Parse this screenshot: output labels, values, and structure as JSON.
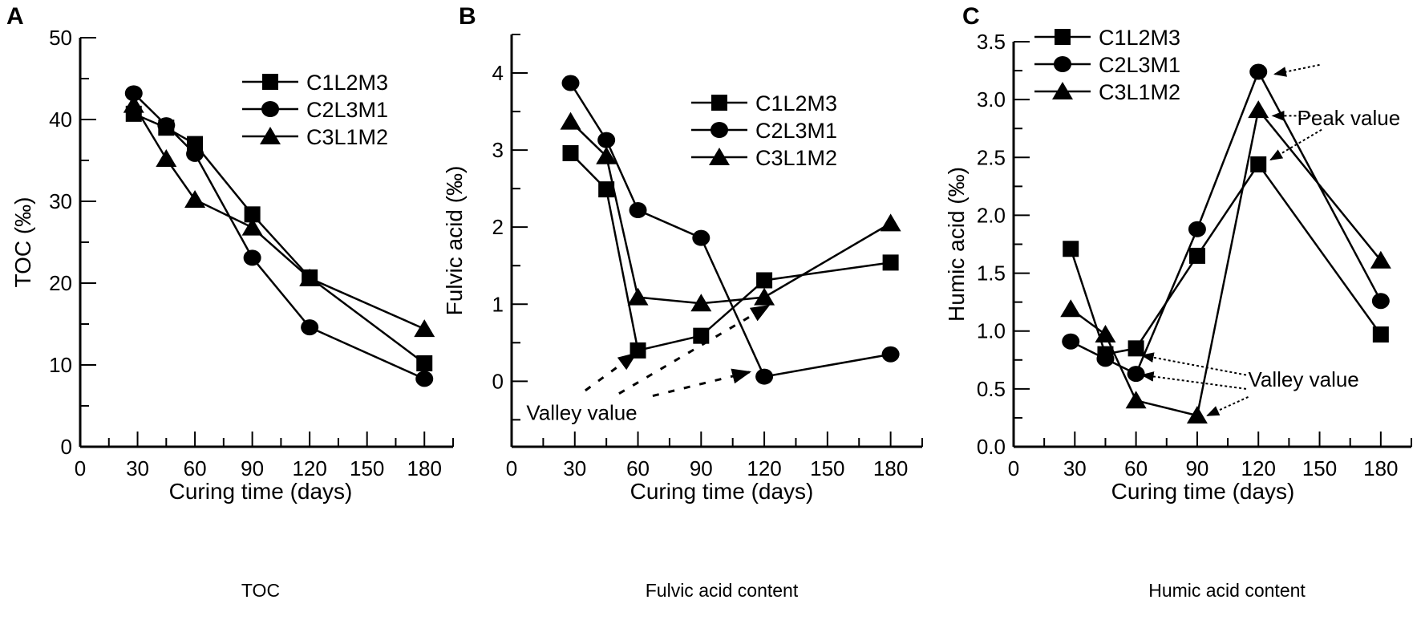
{
  "chart_data": [
    {
      "type": "line",
      "panel_letter": "A",
      "caption": "TOC",
      "xlabel": "Curing time (days)",
      "ylabel": "TOC (‰)",
      "xlim": [
        0,
        195
      ],
      "ylim": [
        0,
        50
      ],
      "xticks": [
        0,
        30,
        60,
        90,
        120,
        150,
        180
      ],
      "yticks": [
        0,
        10,
        20,
        30,
        40,
        50
      ],
      "yminor": [
        5,
        15,
        25,
        35,
        45
      ],
      "ytick_labels": [
        "0",
        "10",
        "20",
        "30",
        "40",
        "50"
      ],
      "grid": false,
      "legend_position": "top-right",
      "x": [
        28,
        45,
        60,
        90,
        120,
        180
      ],
      "series": [
        {
          "name": "C1L2M3",
          "marker": "square",
          "values": [
            40.7,
            39.0,
            37.0,
            28.4,
            20.7,
            10.2
          ]
        },
        {
          "name": "C2L3M1",
          "marker": "circle",
          "values": [
            43.2,
            39.3,
            35.8,
            23.1,
            14.6,
            8.3
          ]
        },
        {
          "name": "C3L1M2",
          "marker": "triangle",
          "values": [
            41.8,
            35.2,
            30.2,
            26.8,
            20.6,
            14.4
          ]
        }
      ],
      "annotations": []
    },
    {
      "type": "line",
      "panel_letter": "B",
      "caption": "Fulvic acid content",
      "xlabel": "Curing time (days)",
      "ylabel": "Fulvic acid (‰)",
      "xlim": [
        0,
        195
      ],
      "ylim": [
        -0.85,
        4.5
      ],
      "xticks": [
        0,
        30,
        60,
        90,
        120,
        150,
        180
      ],
      "yticks": [
        0,
        1,
        2,
        3,
        4
      ],
      "yminor": [
        -0.5,
        0.5,
        1.5,
        2.5,
        3.5,
        4.5
      ],
      "ytick_labels": [
        "0",
        "1",
        "2",
        "3",
        "4"
      ],
      "grid": false,
      "legend_position": "top-right",
      "x": [
        28,
        45,
        60,
        90,
        120,
        180
      ],
      "series": [
        {
          "name": "C1L2M3",
          "marker": "square",
          "values": [
            2.96,
            2.49,
            0.4,
            0.59,
            1.31,
            1.54
          ]
        },
        {
          "name": "C2L3M1",
          "marker": "circle",
          "values": [
            3.87,
            3.13,
            2.22,
            1.86,
            0.06,
            0.35
          ]
        },
        {
          "name": "C3L1M2",
          "marker": "triangle",
          "values": [
            3.37,
            2.92,
            1.09,
            1.01,
            1.09,
            2.05
          ]
        }
      ],
      "annotations": [
        {
          "text": "Valley value",
          "at": [
            7,
            -0.5
          ],
          "arrows": [
            {
              "from": [
                35,
                -0.12
              ],
              "to": [
                59,
                0.36
              ]
            },
            {
              "from": [
                51,
                -0.16
              ],
              "to": [
                122,
                0.98
              ]
            },
            {
              "from": [
                67,
                -0.19
              ],
              "to": [
                113,
                0.12
              ]
            }
          ]
        }
      ]
    },
    {
      "type": "line",
      "panel_letter": "C",
      "caption": "Humic acid content",
      "xlabel": "Curing time (days)",
      "ylabel": "Humic acid (‰)",
      "xlim": [
        0,
        195
      ],
      "ylim": [
        0,
        3.5
      ],
      "xticks": [
        0,
        30,
        60,
        90,
        120,
        150,
        180
      ],
      "yticks": [
        0,
        0.5,
        1.0,
        1.5,
        2.0,
        2.5,
        3.0,
        3.5
      ],
      "yminor": [
        0.25,
        0.75,
        1.25,
        1.75,
        2.25,
        2.75,
        3.25
      ],
      "ytick_labels": [
        "0.0",
        "0.5",
        "1.0",
        "1.5",
        "2.0",
        "2.5",
        "3.0",
        "3.5"
      ],
      "grid": false,
      "legend_position": "top-left",
      "x": [
        28,
        45,
        60,
        90,
        120,
        180
      ],
      "series": [
        {
          "name": "C1L2M3",
          "marker": "square",
          "values": [
            1.71,
            0.8,
            0.85,
            1.65,
            2.44,
            0.97
          ]
        },
        {
          "name": "C2L3M1",
          "marker": "circle",
          "values": [
            0.91,
            0.76,
            0.63,
            1.88,
            3.24,
            1.26
          ]
        },
        {
          "name": "C3L1M2",
          "marker": "triangle",
          "values": [
            1.19,
            0.97,
            0.4,
            0.27,
            2.91,
            1.61
          ]
        }
      ],
      "annotations": [
        {
          "text": "Peak value",
          "at": [
            139,
            2.78
          ],
          "arrows": [
            {
              "from": [
                150,
                3.3
              ],
              "to": [
                128,
                3.22
              ]
            },
            {
              "from": [
                148,
                2.86
              ],
              "to": [
                127,
                2.86
              ]
            },
            {
              "from": [
                151,
                2.74
              ],
              "to": [
                126,
                2.48
              ]
            }
          ]
        },
        {
          "text": "Valley value",
          "at": [
            115,
            0.52
          ],
          "arrows": [
            {
              "from": [
                114,
                0.62
              ],
              "to": [
                63,
                0.79
              ]
            },
            {
              "from": [
                114,
                0.5
              ],
              "to": [
                63,
                0.62
              ]
            },
            {
              "from": [
                115,
                0.43
              ],
              "to": [
                95,
                0.27
              ]
            }
          ]
        }
      ]
    }
  ]
}
